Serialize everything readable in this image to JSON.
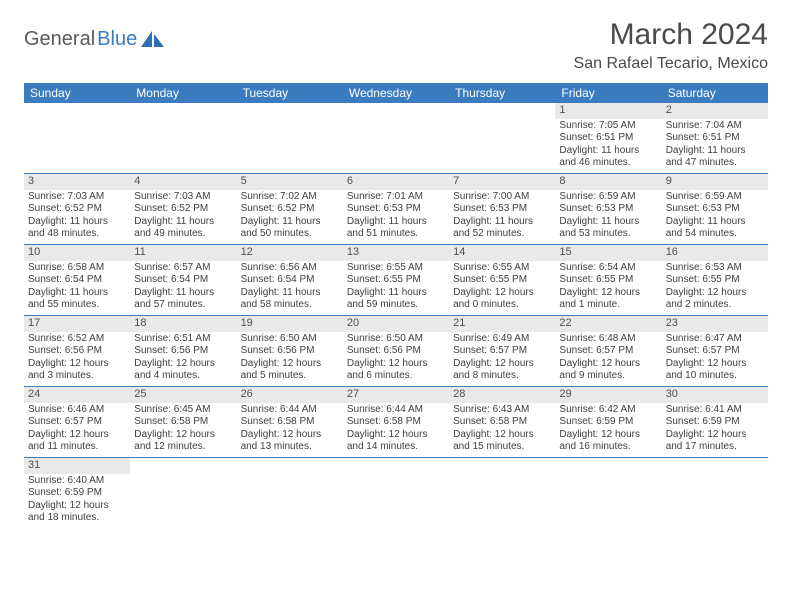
{
  "logo": {
    "text1": "General",
    "text2": "Blue",
    "icon_color": "#2e6fb5"
  },
  "title": "March 2024",
  "location": "San Rafael Tecario, Mexico",
  "colors": {
    "header_bg": "#3b7bbf",
    "header_text": "#ffffff",
    "daynum_bg": "#e9e9e9",
    "border": "#3b7bbf"
  },
  "weekdays": [
    "Sunday",
    "Monday",
    "Tuesday",
    "Wednesday",
    "Thursday",
    "Friday",
    "Saturday"
  ],
  "weeks": [
    [
      null,
      null,
      null,
      null,
      null,
      {
        "n": "1",
        "sr": "Sunrise: 7:05 AM",
        "ss": "Sunset: 6:51 PM",
        "d1": "Daylight: 11 hours",
        "d2": "and 46 minutes."
      },
      {
        "n": "2",
        "sr": "Sunrise: 7:04 AM",
        "ss": "Sunset: 6:51 PM",
        "d1": "Daylight: 11 hours",
        "d2": "and 47 minutes."
      }
    ],
    [
      {
        "n": "3",
        "sr": "Sunrise: 7:03 AM",
        "ss": "Sunset: 6:52 PM",
        "d1": "Daylight: 11 hours",
        "d2": "and 48 minutes."
      },
      {
        "n": "4",
        "sr": "Sunrise: 7:03 AM",
        "ss": "Sunset: 6:52 PM",
        "d1": "Daylight: 11 hours",
        "d2": "and 49 minutes."
      },
      {
        "n": "5",
        "sr": "Sunrise: 7:02 AM",
        "ss": "Sunset: 6:52 PM",
        "d1": "Daylight: 11 hours",
        "d2": "and 50 minutes."
      },
      {
        "n": "6",
        "sr": "Sunrise: 7:01 AM",
        "ss": "Sunset: 6:53 PM",
        "d1": "Daylight: 11 hours",
        "d2": "and 51 minutes."
      },
      {
        "n": "7",
        "sr": "Sunrise: 7:00 AM",
        "ss": "Sunset: 6:53 PM",
        "d1": "Daylight: 11 hours",
        "d2": "and 52 minutes."
      },
      {
        "n": "8",
        "sr": "Sunrise: 6:59 AM",
        "ss": "Sunset: 6:53 PM",
        "d1": "Daylight: 11 hours",
        "d2": "and 53 minutes."
      },
      {
        "n": "9",
        "sr": "Sunrise: 6:59 AM",
        "ss": "Sunset: 6:53 PM",
        "d1": "Daylight: 11 hours",
        "d2": "and 54 minutes."
      }
    ],
    [
      {
        "n": "10",
        "sr": "Sunrise: 6:58 AM",
        "ss": "Sunset: 6:54 PM",
        "d1": "Daylight: 11 hours",
        "d2": "and 55 minutes."
      },
      {
        "n": "11",
        "sr": "Sunrise: 6:57 AM",
        "ss": "Sunset: 6:54 PM",
        "d1": "Daylight: 11 hours",
        "d2": "and 57 minutes."
      },
      {
        "n": "12",
        "sr": "Sunrise: 6:56 AM",
        "ss": "Sunset: 6:54 PM",
        "d1": "Daylight: 11 hours",
        "d2": "and 58 minutes."
      },
      {
        "n": "13",
        "sr": "Sunrise: 6:55 AM",
        "ss": "Sunset: 6:55 PM",
        "d1": "Daylight: 11 hours",
        "d2": "and 59 minutes."
      },
      {
        "n": "14",
        "sr": "Sunrise: 6:55 AM",
        "ss": "Sunset: 6:55 PM",
        "d1": "Daylight: 12 hours",
        "d2": "and 0 minutes."
      },
      {
        "n": "15",
        "sr": "Sunrise: 6:54 AM",
        "ss": "Sunset: 6:55 PM",
        "d1": "Daylight: 12 hours",
        "d2": "and 1 minute."
      },
      {
        "n": "16",
        "sr": "Sunrise: 6:53 AM",
        "ss": "Sunset: 6:55 PM",
        "d1": "Daylight: 12 hours",
        "d2": "and 2 minutes."
      }
    ],
    [
      {
        "n": "17",
        "sr": "Sunrise: 6:52 AM",
        "ss": "Sunset: 6:56 PM",
        "d1": "Daylight: 12 hours",
        "d2": "and 3 minutes."
      },
      {
        "n": "18",
        "sr": "Sunrise: 6:51 AM",
        "ss": "Sunset: 6:56 PM",
        "d1": "Daylight: 12 hours",
        "d2": "and 4 minutes."
      },
      {
        "n": "19",
        "sr": "Sunrise: 6:50 AM",
        "ss": "Sunset: 6:56 PM",
        "d1": "Daylight: 12 hours",
        "d2": "and 5 minutes."
      },
      {
        "n": "20",
        "sr": "Sunrise: 6:50 AM",
        "ss": "Sunset: 6:56 PM",
        "d1": "Daylight: 12 hours",
        "d2": "and 6 minutes."
      },
      {
        "n": "21",
        "sr": "Sunrise: 6:49 AM",
        "ss": "Sunset: 6:57 PM",
        "d1": "Daylight: 12 hours",
        "d2": "and 8 minutes."
      },
      {
        "n": "22",
        "sr": "Sunrise: 6:48 AM",
        "ss": "Sunset: 6:57 PM",
        "d1": "Daylight: 12 hours",
        "d2": "and 9 minutes."
      },
      {
        "n": "23",
        "sr": "Sunrise: 6:47 AM",
        "ss": "Sunset: 6:57 PM",
        "d1": "Daylight: 12 hours",
        "d2": "and 10 minutes."
      }
    ],
    [
      {
        "n": "24",
        "sr": "Sunrise: 6:46 AM",
        "ss": "Sunset: 6:57 PM",
        "d1": "Daylight: 12 hours",
        "d2": "and 11 minutes."
      },
      {
        "n": "25",
        "sr": "Sunrise: 6:45 AM",
        "ss": "Sunset: 6:58 PM",
        "d1": "Daylight: 12 hours",
        "d2": "and 12 minutes."
      },
      {
        "n": "26",
        "sr": "Sunrise: 6:44 AM",
        "ss": "Sunset: 6:58 PM",
        "d1": "Daylight: 12 hours",
        "d2": "and 13 minutes."
      },
      {
        "n": "27",
        "sr": "Sunrise: 6:44 AM",
        "ss": "Sunset: 6:58 PM",
        "d1": "Daylight: 12 hours",
        "d2": "and 14 minutes."
      },
      {
        "n": "28",
        "sr": "Sunrise: 6:43 AM",
        "ss": "Sunset: 6:58 PM",
        "d1": "Daylight: 12 hours",
        "d2": "and 15 minutes."
      },
      {
        "n": "29",
        "sr": "Sunrise: 6:42 AM",
        "ss": "Sunset: 6:59 PM",
        "d1": "Daylight: 12 hours",
        "d2": "and 16 minutes."
      },
      {
        "n": "30",
        "sr": "Sunrise: 6:41 AM",
        "ss": "Sunset: 6:59 PM",
        "d1": "Daylight: 12 hours",
        "d2": "and 17 minutes."
      }
    ],
    [
      {
        "n": "31",
        "sr": "Sunrise: 6:40 AM",
        "ss": "Sunset: 6:59 PM",
        "d1": "Daylight: 12 hours",
        "d2": "and 18 minutes."
      },
      null,
      null,
      null,
      null,
      null,
      null
    ]
  ]
}
